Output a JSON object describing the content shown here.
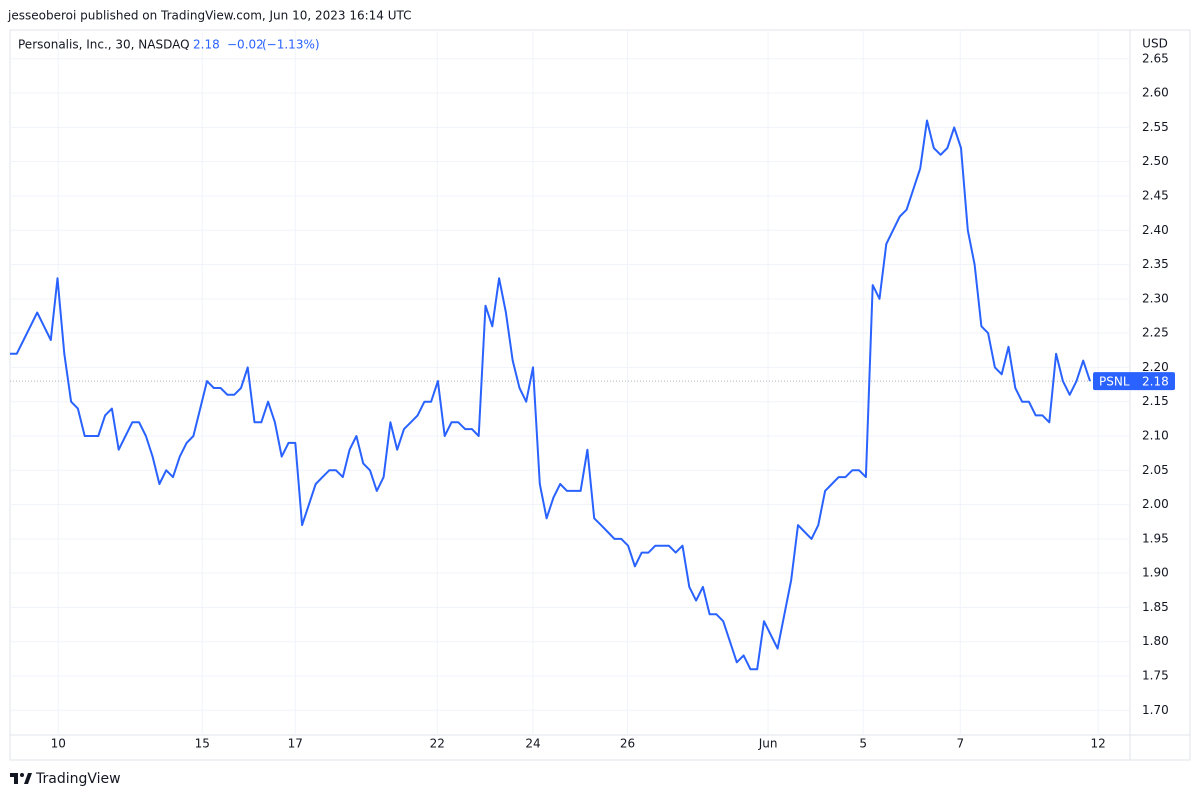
{
  "header": "jesseoberoi published on TradingView.com, Jun 10, 2023 16:14 UTC",
  "footer": "TradingView",
  "chart_data": {
    "type": "line",
    "symbol": "Personalis, Inc., 30, NASDAQ",
    "last_price": 2.18,
    "change": {
      "value": -0.02,
      "label": "−0.02"
    },
    "change_pct": {
      "value": -1.13,
      "label": "(−1.13%)"
    },
    "currency": "USD",
    "grid": true,
    "xlim": [
      0,
      164
    ],
    "xticks": [
      {
        "value": 7.1,
        "label": "10"
      },
      {
        "value": 28.3,
        "label": "15"
      },
      {
        "value": 42.0,
        "label": "17"
      },
      {
        "value": 62.9,
        "label": "22"
      },
      {
        "value": 77.0,
        "label": "24"
      },
      {
        "value": 90.9,
        "label": "26"
      },
      {
        "value": 111.6,
        "label": "Jun"
      },
      {
        "value": 125.6,
        "label": "5"
      },
      {
        "value": 139.9,
        "label": "7"
      },
      {
        "value": 160.2,
        "label": "12"
      }
    ],
    "ylim": [
      1.664,
      2.692
    ],
    "yticks": [
      {
        "value": 1.7,
        "label": "1.70"
      },
      {
        "value": 1.75,
        "label": "1.75"
      },
      {
        "value": 1.8,
        "label": "1.80"
      },
      {
        "value": 1.85,
        "label": "1.85"
      },
      {
        "value": 1.9,
        "label": "1.90"
      },
      {
        "value": 1.95,
        "label": "1.95"
      },
      {
        "value": 2.0,
        "label": "2.00"
      },
      {
        "value": 2.05,
        "label": "2.05"
      },
      {
        "value": 2.1,
        "label": "2.10"
      },
      {
        "value": 2.15,
        "label": "2.15"
      },
      {
        "value": 2.2,
        "label": "2.20"
      },
      {
        "value": 2.25,
        "label": "2.25"
      },
      {
        "value": 2.3,
        "label": "2.30"
      },
      {
        "value": 2.35,
        "label": "2.35"
      },
      {
        "value": 2.4,
        "label": "2.40"
      },
      {
        "value": 2.45,
        "label": "2.45"
      },
      {
        "value": 2.5,
        "label": "2.50"
      },
      {
        "value": 2.55,
        "label": "2.55"
      },
      {
        "value": 2.6,
        "label": "2.60"
      },
      {
        "value": 2.65,
        "label": "2.65"
      }
    ],
    "series": [
      {
        "name": "PSNL",
        "color": "#2962ff",
        "values": [
          2.22,
          2.22,
          2.24,
          2.26,
          2.28,
          2.26,
          2.24,
          2.33,
          2.22,
          2.15,
          2.14,
          2.1,
          2.1,
          2.1,
          2.13,
          2.14,
          2.08,
          2.1,
          2.12,
          2.12,
          2.1,
          2.07,
          2.03,
          2.05,
          2.04,
          2.07,
          2.09,
          2.1,
          2.14,
          2.18,
          2.17,
          2.17,
          2.16,
          2.16,
          2.17,
          2.2,
          2.12,
          2.12,
          2.15,
          2.12,
          2.07,
          2.09,
          2.09,
          1.97,
          2.0,
          2.03,
          2.04,
          2.05,
          2.05,
          2.04,
          2.08,
          2.1,
          2.06,
          2.05,
          2.02,
          2.04,
          2.12,
          2.08,
          2.11,
          2.12,
          2.13,
          2.15,
          2.15,
          2.18,
          2.1,
          2.12,
          2.12,
          2.11,
          2.11,
          2.1,
          2.29,
          2.26,
          2.33,
          2.28,
          2.21,
          2.17,
          2.15,
          2.2,
          2.03,
          1.98,
          2.01,
          2.03,
          2.02,
          2.02,
          2.02,
          2.08,
          1.98,
          1.97,
          1.96,
          1.95,
          1.95,
          1.94,
          1.91,
          1.93,
          1.93,
          1.94,
          1.94,
          1.94,
          1.93,
          1.94,
          1.88,
          1.86,
          1.88,
          1.84,
          1.84,
          1.83,
          1.8,
          1.77,
          1.78,
          1.76,
          1.76,
          1.83,
          1.81,
          1.79,
          1.84,
          1.89,
          1.97,
          1.96,
          1.95,
          1.97,
          2.02,
          2.03,
          2.04,
          2.04,
          2.05,
          2.05,
          2.04,
          2.32,
          2.3,
          2.38,
          2.4,
          2.42,
          2.43,
          2.46,
          2.49,
          2.56,
          2.52,
          2.51,
          2.52,
          2.55,
          2.52,
          2.4,
          2.35,
          2.26,
          2.25,
          2.2,
          2.19,
          2.23,
          2.17,
          2.15,
          2.15,
          2.13,
          2.13,
          2.12,
          2.22,
          2.18,
          2.16,
          2.18,
          2.21,
          2.18
        ]
      }
    ]
  }
}
